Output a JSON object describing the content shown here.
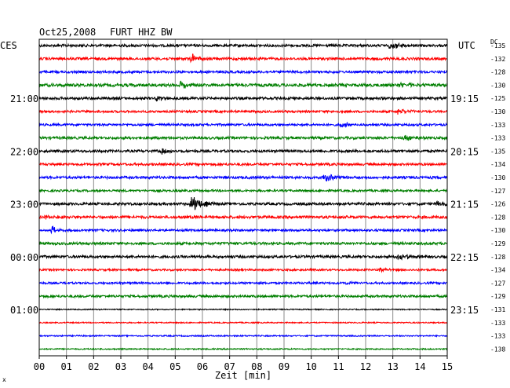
{
  "header": {
    "date": "Oct25,2008",
    "station": "FURT HHZ BW",
    "left_zone": "CES",
    "right_zone": "UTC",
    "dc_label": "DC"
  },
  "chart_data": {
    "type": "line",
    "title": "Oct25,2008   FURT HHZ BW",
    "xlabel": "Zeit [min]",
    "x_ticks": [
      "00",
      "01",
      "02",
      "03",
      "04",
      "05",
      "06",
      "07",
      "08",
      "09",
      "10",
      "11",
      "12",
      "13",
      "14",
      "15"
    ],
    "xlim": [
      0,
      15
    ],
    "grid": true,
    "series_colors": [
      "#000000",
      "#ff0000",
      "#0000ff",
      "#007f00"
    ],
    "left_time_labels": [
      {
        "row": 4,
        "text": "21:00"
      },
      {
        "row": 8,
        "text": "22:00"
      },
      {
        "row": 12,
        "text": "23:00"
      },
      {
        "row": 16,
        "text": "00:00"
      },
      {
        "row": 20,
        "text": "01:00"
      }
    ],
    "right_time_labels": [
      {
        "row": 4,
        "text": "19:15"
      },
      {
        "row": 8,
        "text": "20:15"
      },
      {
        "row": 12,
        "text": "21:15"
      },
      {
        "row": 16,
        "text": "22:15"
      },
      {
        "row": 20,
        "text": "23:15"
      }
    ],
    "dc_offsets": [
      "-135",
      "-132",
      "-128",
      "-130",
      "-125",
      "-130",
      "-133",
      "-133",
      "-135",
      "-134",
      "-130",
      "-127",
      "-126",
      "-128",
      "-130",
      "-129",
      "-128",
      "-134",
      "-127",
      "-129",
      "-131",
      "-133",
      "-133",
      "-138"
    ],
    "traces": [
      {
        "noise": 1.6,
        "events": [
          {
            "t": 12.9,
            "amp": 4,
            "width": 0.5
          }
        ]
      },
      {
        "noise": 1.6,
        "events": [
          {
            "t": 5.6,
            "amp": 7,
            "width": 0.25
          }
        ]
      },
      {
        "noise": 1.5,
        "events": []
      },
      {
        "noise": 1.9,
        "events": [
          {
            "t": 5.2,
            "amp": 6,
            "width": 0.3
          },
          {
            "t": 13.3,
            "amp": 3,
            "width": 0.5
          }
        ]
      },
      {
        "noise": 1.6,
        "events": [
          {
            "t": 4.3,
            "amp": 3,
            "width": 0.3
          }
        ]
      },
      {
        "noise": 1.4,
        "events": [
          {
            "t": 13.2,
            "amp": 3,
            "width": 0.4
          }
        ]
      },
      {
        "noise": 1.4,
        "events": [
          {
            "t": 11.1,
            "amp": 2.5,
            "width": 0.4
          }
        ]
      },
      {
        "noise": 1.6,
        "events": [
          {
            "t": 13.4,
            "amp": 3,
            "width": 0.4
          }
        ]
      },
      {
        "noise": 1.6,
        "events": [
          {
            "t": 4.5,
            "amp": 4,
            "width": 0.3
          }
        ]
      },
      {
        "noise": 1.5,
        "events": []
      },
      {
        "noise": 1.6,
        "events": [
          {
            "t": 10.5,
            "amp": 5,
            "width": 0.5
          }
        ]
      },
      {
        "noise": 1.3,
        "events": []
      },
      {
        "noise": 1.6,
        "events": [
          {
            "t": 5.6,
            "amp": 11,
            "width": 0.35
          },
          {
            "t": 14.6,
            "amp": 3,
            "width": 0.4
          }
        ]
      },
      {
        "noise": 1.7,
        "events": [
          {
            "t": 0.2,
            "amp": 3,
            "width": 0.3
          }
        ]
      },
      {
        "noise": 1.4,
        "events": [
          {
            "t": 0.45,
            "amp": 6,
            "width": 0.15
          }
        ]
      },
      {
        "noise": 1.6,
        "events": []
      },
      {
        "noise": 1.6,
        "events": [
          {
            "t": 13.2,
            "amp": 4,
            "width": 0.5
          }
        ]
      },
      {
        "noise": 1.2,
        "events": [
          {
            "t": 12.5,
            "amp": 2.5,
            "width": 0.3
          }
        ]
      },
      {
        "noise": 1.3,
        "events": [
          {
            "t": 11.3,
            "amp": 2,
            "width": 0.2
          }
        ]
      },
      {
        "noise": 1.5,
        "events": []
      },
      {
        "noise": 0.7,
        "events": []
      },
      {
        "noise": 0.7,
        "events": []
      },
      {
        "noise": 0.8,
        "events": []
      },
      {
        "noise": 0.8,
        "events": []
      }
    ]
  }
}
